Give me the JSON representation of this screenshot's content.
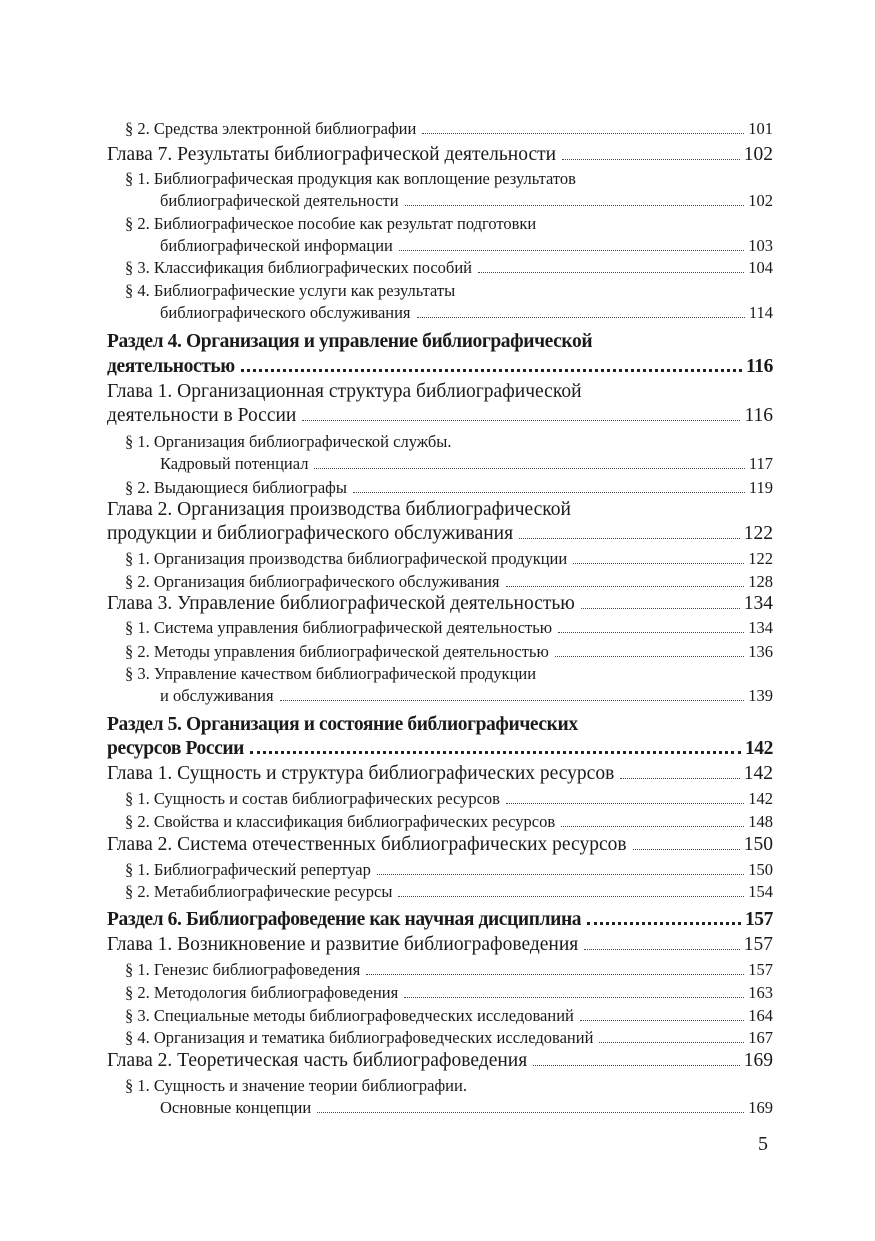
{
  "entries": [
    {
      "kind": "sec",
      "lines": [
        {
          "text": "§ 2. Средства электронной библиографии",
          "page": "101"
        }
      ]
    },
    {
      "kind": "ch",
      "lines": [
        {
          "text": "Глава 7. Результаты библиографической деятельности",
          "page": "102"
        }
      ]
    },
    {
      "kind": "sec",
      "lines": [
        {
          "text": "§ 1. Библиографическая продукция как воплощение результатов"
        },
        {
          "text": "библиографической деятельности",
          "page": "102"
        }
      ]
    },
    {
      "kind": "sec",
      "lines": [
        {
          "text": "§ 2. Библиографическое пособие как результат подготовки"
        },
        {
          "text": "библиографической информации",
          "page": "103"
        }
      ]
    },
    {
      "kind": "sec",
      "lines": [
        {
          "text": "§ 3. Классификация библиографических пособий",
          "page": "104"
        }
      ]
    },
    {
      "kind": "sec",
      "lines": [
        {
          "text": "§ 4. Библиографические услуги как результаты"
        },
        {
          "text": "библиографического обслуживания",
          "page": "114"
        }
      ]
    },
    {
      "kind": "part",
      "lines": [
        {
          "text": "Раздел 4. Организация и управление библиографической"
        },
        {
          "text": "деятельностью",
          "page": "116"
        }
      ]
    },
    {
      "kind": "ch",
      "lines": [
        {
          "text": "Глава 1. Организационная структура библиографической"
        },
        {
          "text": "деятельности в России",
          "page": "116"
        }
      ]
    },
    {
      "kind": "sec",
      "lines": [
        {
          "text": "§ 1. Организация библиографической службы."
        },
        {
          "text": "Кадровый потенциал",
          "page": "117"
        }
      ]
    },
    {
      "kind": "sec",
      "lines": [
        {
          "text": "§ 2. Выдающиеся библиографы",
          "page": "119"
        }
      ]
    },
    {
      "kind": "ch",
      "lines": [
        {
          "text": "Глава 2. Организация производства библиографической"
        },
        {
          "text": "продукции и библиографического обслуживания",
          "page": "122"
        }
      ]
    },
    {
      "kind": "sec",
      "lines": [
        {
          "text": "§ 1. Организация производства библиографической продукции",
          "page": "122"
        }
      ]
    },
    {
      "kind": "sec",
      "lines": [
        {
          "text": "§ 2. Организация библиографического обслуживания",
          "page": "128"
        }
      ]
    },
    {
      "kind": "ch",
      "lines": [
        {
          "text": "Глава 3. Управление библиографической деятельностью",
          "page": "134"
        }
      ]
    },
    {
      "kind": "sec",
      "lines": [
        {
          "text": "§ 1. Система управления библиографической деятельностью",
          "page": "134"
        }
      ]
    },
    {
      "kind": "sec",
      "lines": [
        {
          "text": "§ 2. Методы управления библиографической деятельностью",
          "page": "136"
        }
      ]
    },
    {
      "kind": "sec",
      "lines": [
        {
          "text": "§ 3. Управление качеством библиографической продукции"
        },
        {
          "text": "и обслуживания",
          "page": "139"
        }
      ]
    },
    {
      "kind": "part",
      "lines": [
        {
          "text": "Раздел 5. Организация и состояние библиографических"
        },
        {
          "text": "ресурсов России",
          "page": "142"
        }
      ]
    },
    {
      "kind": "ch",
      "lines": [
        {
          "text": "Глава 1. Сущность и структура библиографических ресурсов",
          "page": "142"
        }
      ]
    },
    {
      "kind": "sec",
      "lines": [
        {
          "text": "§ 1. Сущность и состав библиографических ресурсов",
          "page": "142"
        }
      ]
    },
    {
      "kind": "sec",
      "lines": [
        {
          "text": "§ 2. Свойства и классификация библиографических ресурсов",
          "page": "148"
        }
      ]
    },
    {
      "kind": "ch",
      "lines": [
        {
          "text": "Глава 2. Система отечественных библиографических ресурсов",
          "page": "150"
        }
      ]
    },
    {
      "kind": "sec",
      "lines": [
        {
          "text": "§ 1. Библиографический репертуар",
          "page": "150"
        }
      ]
    },
    {
      "kind": "sec",
      "lines": [
        {
          "text": "§ 2. Метабиблиографические ресурсы",
          "page": "154"
        }
      ]
    },
    {
      "kind": "part",
      "lines": [
        {
          "text": "Раздел 6. Библиографоведение как научная дисциплина",
          "page": "157"
        }
      ]
    },
    {
      "kind": "ch",
      "lines": [
        {
          "text": "Глава 1. Возникновение и развитие библиографоведения",
          "page": "157"
        }
      ]
    },
    {
      "kind": "sec",
      "lines": [
        {
          "text": "§ 1. Генезис библиографоведения",
          "page": "157"
        }
      ]
    },
    {
      "kind": "sec",
      "lines": [
        {
          "text": "§ 2. Методология библиографоведения",
          "page": "163"
        }
      ]
    },
    {
      "kind": "sec",
      "lines": [
        {
          "text": "§ 3. Специальные методы библиографоведческих исследований",
          "page": "164"
        }
      ]
    },
    {
      "kind": "sec",
      "lines": [
        {
          "text": "§ 4. Организация и тематика библиографоведческих исследований",
          "page": "167"
        }
      ]
    },
    {
      "kind": "ch",
      "lines": [
        {
          "text": "Глава 2. Теоретическая часть библиографоведения",
          "page": "169"
        }
      ]
    },
    {
      "kind": "sec",
      "lines": [
        {
          "text": "§ 1. Сущность и значение теории библиографии."
        },
        {
          "text": "Основные концепции",
          "page": "169"
        }
      ]
    }
  ],
  "page_number": "5"
}
